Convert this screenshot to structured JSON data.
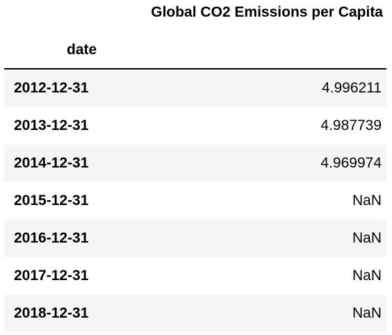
{
  "table": {
    "column_header": "Global CO2 Emissions per Capita",
    "index_header": "date",
    "rows": [
      {
        "date": "2012-12-31",
        "value": "4.996211"
      },
      {
        "date": "2013-12-31",
        "value": "4.987739"
      },
      {
        "date": "2014-12-31",
        "value": "4.969974"
      },
      {
        "date": "2015-12-31",
        "value": "NaN"
      },
      {
        "date": "2016-12-31",
        "value": "NaN"
      },
      {
        "date": "2017-12-31",
        "value": "NaN"
      },
      {
        "date": "2018-12-31",
        "value": "NaN"
      }
    ]
  }
}
